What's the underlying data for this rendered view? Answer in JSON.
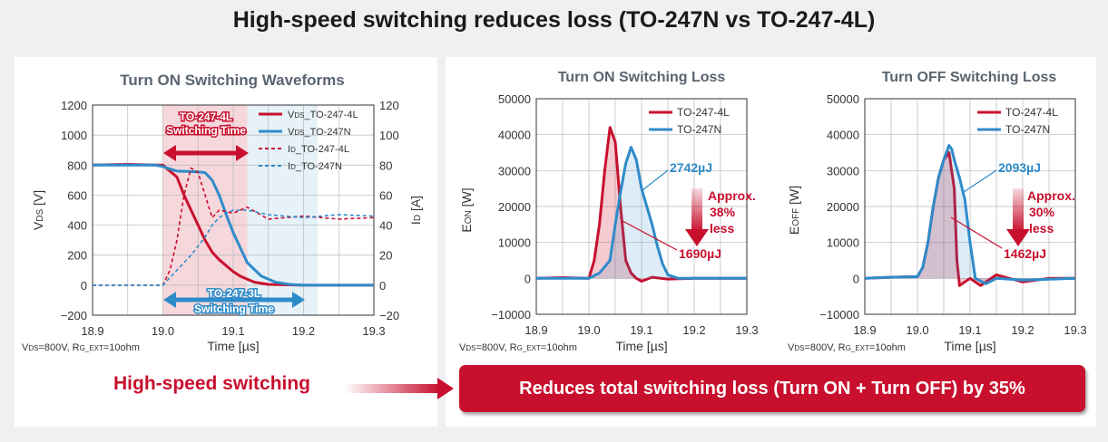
{
  "page_title": "High-speed switching reduces loss (TO-247N vs TO-247-4L)",
  "colors": {
    "red": "#c8102e",
    "blue": "#2e8bc9"
  },
  "bottom": {
    "left_label": "High-speed switching",
    "result": "Reduces total switching loss (Turn ON + Turn OFF) by 35%"
  },
  "chart_data": [
    {
      "type": "line",
      "title": "Turn ON Switching Waveforms",
      "xlabel": "Time [µs]",
      "ylabel_left_main": "V",
      "ylabel_left_sub": "DS",
      "ylabel_left_unit": " [V]",
      "ylabel_right_main": "I",
      "ylabel_right_sub": "D",
      "ylabel_right_unit": " [A]",
      "xlim": [
        18.9,
        19.3
      ],
      "ylim": [
        -200,
        1200
      ],
      "y2lim": [
        -20,
        120
      ],
      "xticks": [
        "18.9",
        "19.0",
        "19.1",
        "19.2",
        "19.3"
      ],
      "yticks": [
        "1200",
        "1000",
        "800",
        "600",
        "400",
        "200",
        "0",
        "−200"
      ],
      "y2ticks": [
        "120",
        "100",
        "80",
        "60",
        "40",
        "20",
        "0",
        "−20"
      ],
      "grid": true,
      "conditions_main1": "V",
      "conditions_sub1": "DS",
      "conditions_main2": "=800V, R",
      "conditions_sub2": "G_EXT",
      "conditions_main3": "=10ohm",
      "shaded_regions": [
        {
          "label1": "TO-247-4L",
          "label2": "Switching Time",
          "x0": 19.0,
          "x1": 19.12,
          "color": "#c8102e"
        },
        {
          "label1": "TO-247-3L",
          "label2": "Switching Time",
          "x0": 19.0,
          "x1": 19.22,
          "color": "#2e8bc9"
        }
      ],
      "series": [
        {
          "name_main": "V",
          "name_sub": "DS",
          "name_rest": "_TO-247-4L",
          "axis": "left",
          "style": "solid",
          "color": "#c8102e",
          "x": [
            18.9,
            18.95,
            18.99,
            19.0,
            19.02,
            19.03,
            19.04,
            19.05,
            19.06,
            19.07,
            19.08,
            19.09,
            19.1,
            19.11,
            19.12,
            19.13,
            19.15,
            19.2,
            19.3
          ],
          "y": [
            800,
            805,
            800,
            800,
            720,
            600,
            500,
            400,
            300,
            220,
            170,
            130,
            90,
            60,
            40,
            20,
            5,
            0,
            0
          ]
        },
        {
          "name_main": "V",
          "name_sub": "DS",
          "name_rest": "_TO-247N",
          "axis": "left",
          "style": "solid",
          "color": "#2e8bc9",
          "x": [
            18.9,
            18.99,
            19.0,
            19.02,
            19.05,
            19.06,
            19.07,
            19.08,
            19.09,
            19.1,
            19.11,
            19.12,
            19.14,
            19.16,
            19.18,
            19.2,
            19.3
          ],
          "y": [
            800,
            800,
            790,
            760,
            755,
            750,
            700,
            600,
            470,
            350,
            250,
            150,
            60,
            20,
            5,
            0,
            0
          ]
        },
        {
          "name_main": "I",
          "name_sub": "D",
          "name_rest": "_TO-247-4L",
          "axis": "right",
          "style": "dashed",
          "color": "#c8102e",
          "x": [
            18.9,
            18.99,
            19.0,
            19.01,
            19.02,
            19.03,
            19.04,
            19.05,
            19.06,
            19.07,
            19.08,
            19.1,
            19.12,
            19.15,
            19.2,
            19.25,
            19.3
          ],
          "y": [
            0,
            0,
            0,
            10,
            30,
            60,
            78,
            75,
            60,
            45,
            50,
            48,
            52,
            44,
            46,
            44,
            45
          ]
        },
        {
          "name_main": "I",
          "name_sub": "D",
          "name_rest": "_TO-247N",
          "axis": "right",
          "style": "dashed",
          "color": "#2e8bc9",
          "x": [
            18.9,
            19.0,
            19.02,
            19.04,
            19.06,
            19.07,
            19.08,
            19.09,
            19.1,
            19.12,
            19.15,
            19.2,
            19.25,
            19.3
          ],
          "y": [
            0,
            0,
            10,
            20,
            32,
            40,
            45,
            48,
            50,
            50,
            47,
            45,
            47,
            46
          ]
        }
      ]
    },
    {
      "type": "line",
      "title": "Turn ON Switching Loss",
      "xlabel": "Time [µs]",
      "ylabel_main": "E",
      "ylabel_sub": "ON",
      "ylabel_unit": " [W]",
      "xlim": [
        18.9,
        19.3
      ],
      "ylim": [
        -10000,
        50000
      ],
      "xticks": [
        "18.9",
        "19.0",
        "19.1",
        "19.2",
        "19.3"
      ],
      "yticks": [
        "50000",
        "40000",
        "30000",
        "20000",
        "10000",
        "0",
        "−10000"
      ],
      "grid": true,
      "conditions_main1": "V",
      "conditions_sub1": "DS",
      "conditions_main2": "=800V, R",
      "conditions_sub2": "G_EXT",
      "conditions_main3": "=10ohm",
      "annotations": {
        "blue_value": "2742µJ",
        "red_value": "1690µJ",
        "reduction_line1": "Approx.",
        "reduction_line2": "38%",
        "reduction_line3": "less"
      },
      "series": [
        {
          "name": "TO-247-4L",
          "color": "#c8102e",
          "x": [
            18.9,
            18.95,
            19.0,
            19.01,
            19.02,
            19.03,
            19.04,
            19.05,
            19.06,
            19.07,
            19.08,
            19.09,
            19.1,
            19.12,
            19.15,
            19.2,
            19.3
          ],
          "y": [
            0,
            200,
            0,
            5000,
            15000,
            30000,
            42000,
            38000,
            20000,
            5000,
            1500,
            0,
            -800,
            300,
            -200,
            0,
            0
          ]
        },
        {
          "name": "TO-247N",
          "color": "#2e8bc9",
          "x": [
            18.9,
            18.95,
            19.0,
            19.02,
            19.04,
            19.05,
            19.06,
            19.07,
            19.08,
            19.09,
            19.1,
            19.11,
            19.12,
            19.13,
            19.14,
            19.15,
            19.17,
            19.2,
            19.3
          ],
          "y": [
            0,
            0,
            0,
            1500,
            5000,
            15000,
            24000,
            32000,
            36500,
            33000,
            25000,
            20000,
            15000,
            9000,
            4000,
            1000,
            0,
            0,
            0
          ]
        }
      ]
    },
    {
      "type": "line",
      "title": "Turn OFF Switching Loss",
      "xlabel": "Time [µs]",
      "ylabel_main": "E",
      "ylabel_sub": "OFF",
      "ylabel_unit": " [W]",
      "xlim": [
        18.9,
        19.3
      ],
      "ylim": [
        -10000,
        50000
      ],
      "xticks": [
        "18.9",
        "19.0",
        "19.1",
        "19.2",
        "19.3"
      ],
      "yticks": [
        "50000",
        "40000",
        "30000",
        "20000",
        "10000",
        "0",
        "−10000"
      ],
      "grid": true,
      "conditions_main1": "V",
      "conditions_sub1": "DS",
      "conditions_main2": "=800V, R",
      "conditions_sub2": "G_EXT",
      "conditions_main3": "=10ohm",
      "annotations": {
        "blue_value": "2093µJ",
        "red_value": "1462µJ",
        "reduction_line1": "Approx.",
        "reduction_line2": "30%",
        "reduction_line3": "less"
      },
      "series": [
        {
          "name": "TO-247-4L",
          "color": "#c8102e",
          "x": [
            18.9,
            18.95,
            19.0,
            19.01,
            19.02,
            19.03,
            19.04,
            19.05,
            19.06,
            19.07,
            19.075,
            19.08,
            19.1,
            19.12,
            19.15,
            19.2,
            19.25,
            19.3
          ],
          "y": [
            0,
            300,
            500,
            3000,
            10000,
            20000,
            28000,
            33000,
            35000,
            25000,
            5000,
            -2000,
            0,
            -2000,
            1000,
            -1000,
            0,
            0
          ]
        },
        {
          "name": "TO-247N",
          "color": "#2e8bc9",
          "x": [
            18.9,
            18.95,
            19.0,
            19.01,
            19.02,
            19.03,
            19.04,
            19.05,
            19.06,
            19.065,
            19.07,
            19.08,
            19.09,
            19.1,
            19.11,
            19.13,
            19.15,
            19.2,
            19.3
          ],
          "y": [
            0,
            300,
            500,
            3000,
            10000,
            20000,
            28000,
            33000,
            37000,
            36000,
            33000,
            28000,
            22000,
            10000,
            0,
            -1500,
            0,
            -500,
            0
          ]
        }
      ]
    }
  ]
}
